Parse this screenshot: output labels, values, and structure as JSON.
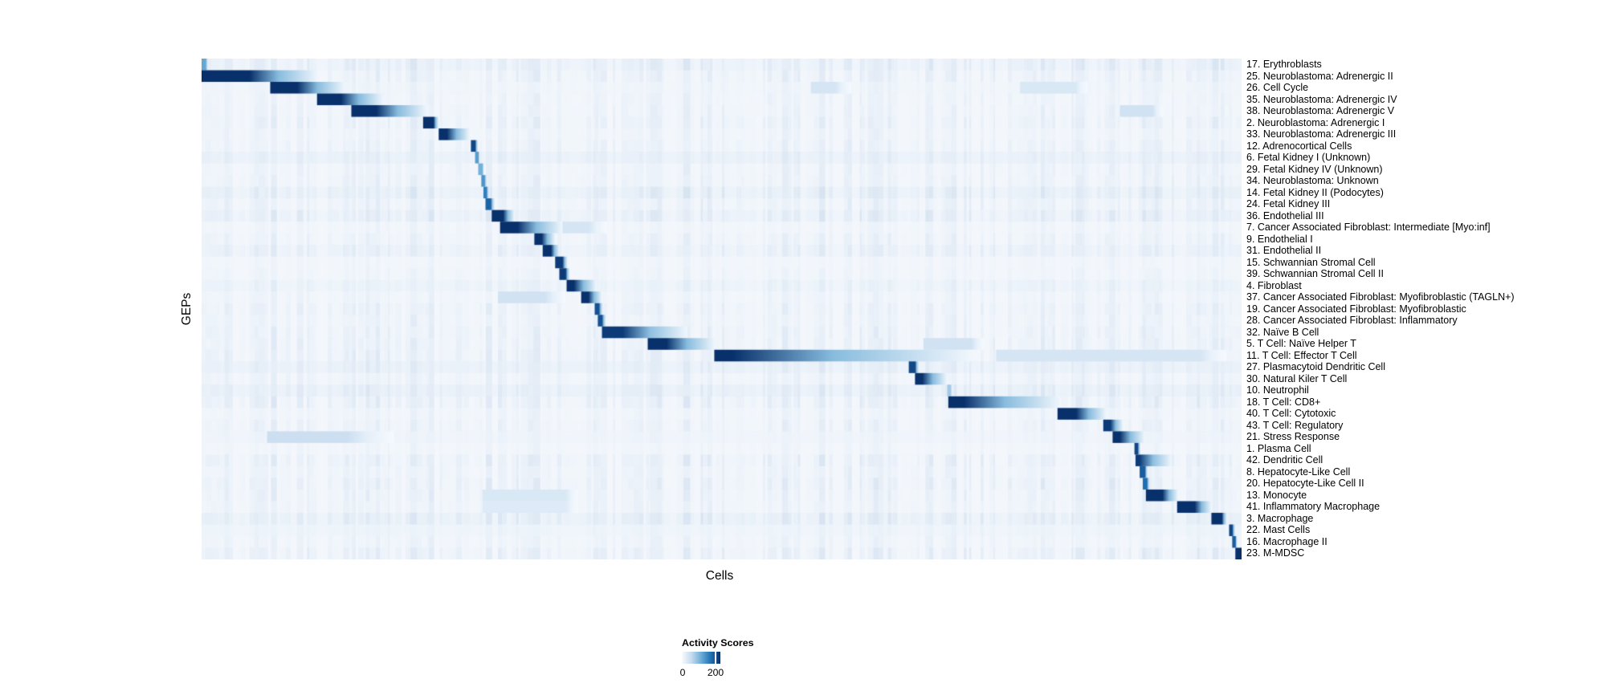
{
  "figure": {
    "xlabel": "Cells",
    "ylabel": "GEPs"
  },
  "legend": {
    "title": "Activity Scores",
    "tick_labels": [
      "0",
      "200"
    ],
    "min": 0,
    "max": 230,
    "tick_value": 200
  },
  "colors": {
    "colormap": "Blues",
    "cmap_anchors": [
      "#f7fbff",
      "#c6dbef",
      "#6baed6",
      "#2171b5",
      "#08306b"
    ],
    "heatmap_background": "#f3f7fc",
    "noise_stripe": "#7da5d2",
    "text": "#000000",
    "page_background": "#ffffff"
  },
  "chart_data": {
    "type": "heatmap",
    "title": "",
    "xlabel": "Cells",
    "ylabel": "GEPs",
    "colorbar_title": "Activity Scores",
    "colorbar_ticks": [
      0,
      200
    ],
    "value_range": [
      0,
      230
    ],
    "n_rows": 43,
    "note_segments": "segments: s=start, e=end of peak block, f=fade end (fractions 0-1 along Cells axis), p=peak activity score",
    "rows": [
      {
        "label": "17. Erythroblasts",
        "segments": [
          {
            "s": 0.0,
            "e": 0.004,
            "f": 0.007,
            "p": 120
          }
        ]
      },
      {
        "label": "25. Neuroblastoma: Adrenergic II",
        "segments": [
          {
            "s": 0.0,
            "e": 0.046,
            "f": 0.112,
            "p": 230
          }
        ]
      },
      {
        "label": "26. Cell Cycle",
        "segments": [
          {
            "s": 0.066,
            "e": 0.092,
            "f": 0.138,
            "p": 230
          },
          {
            "s": 0.586,
            "e": 0.609,
            "f": 0.625,
            "p": 40
          },
          {
            "s": 0.787,
            "e": 0.84,
            "f": 0.852,
            "p": 35
          }
        ]
      },
      {
        "label": "35. Neuroblastoma: Adrenergic IV",
        "segments": [
          {
            "s": 0.111,
            "e": 0.134,
            "f": 0.175,
            "p": 230
          }
        ]
      },
      {
        "label": "38. Neuroblastoma: Adrenergic V",
        "segments": [
          {
            "s": 0.144,
            "e": 0.168,
            "f": 0.217,
            "p": 230
          },
          {
            "s": 0.883,
            "e": 0.914,
            "f": 0.924,
            "p": 45
          }
        ]
      },
      {
        "label": "2. Neuroblastoma: Adrenergic I",
        "segments": [
          {
            "s": 0.213,
            "e": 0.223,
            "f": 0.228,
            "p": 230
          }
        ]
      },
      {
        "label": "33. Neuroblastoma: Adrenergic III",
        "segments": [
          {
            "s": 0.228,
            "e": 0.236,
            "f": 0.258,
            "p": 230
          }
        ]
      },
      {
        "label": "12. Adrenocortical Cells",
        "segments": [
          {
            "s": 0.259,
            "e": 0.263,
            "f": 0.266,
            "p": 210
          }
        ]
      },
      {
        "label": "6. Fetal Kidney I (Unknown)",
        "segments": [
          {
            "s": 0.263,
            "e": 0.266,
            "f": 0.268,
            "p": 130
          }
        ]
      },
      {
        "label": "29. Fetal Kidney IV (Unknown)",
        "segments": [
          {
            "s": 0.266,
            "e": 0.27,
            "f": 0.272,
            "p": 110
          }
        ]
      },
      {
        "label": "34. Neuroblastoma: Unknown",
        "segments": [
          {
            "s": 0.269,
            "e": 0.272,
            "f": 0.275,
            "p": 140
          }
        ]
      },
      {
        "label": "14. Fetal Kidney II (Podocytes)",
        "segments": [
          {
            "s": 0.271,
            "e": 0.274,
            "f": 0.277,
            "p": 160
          }
        ]
      },
      {
        "label": "24. Fetal Kidney III",
        "segments": [
          {
            "s": 0.273,
            "e": 0.278,
            "f": 0.282,
            "p": 185
          }
        ]
      },
      {
        "label": "36. Endothelial III",
        "segments": [
          {
            "s": 0.279,
            "e": 0.29,
            "f": 0.301,
            "p": 230
          }
        ]
      },
      {
        "label": "7. Cancer Associated Fibroblast: Intermediate [Myo:inf]",
        "segments": [
          {
            "s": 0.287,
            "e": 0.304,
            "f": 0.347,
            "p": 230
          },
          {
            "s": 0.347,
            "e": 0.372,
            "f": 0.39,
            "p": 40
          }
        ]
      },
      {
        "label": "9. Endothelial I",
        "segments": [
          {
            "s": 0.32,
            "e": 0.327,
            "f": 0.34,
            "p": 230
          }
        ]
      },
      {
        "label": "31. Endothelial II",
        "segments": [
          {
            "s": 0.328,
            "e": 0.336,
            "f": 0.344,
            "p": 230
          }
        ]
      },
      {
        "label": "15. Schwannian Stromal Cell",
        "segments": [
          {
            "s": 0.34,
            "e": 0.347,
            "f": 0.352,
            "p": 220
          }
        ]
      },
      {
        "label": "39. Schwannian Stromal Cell II",
        "segments": [
          {
            "s": 0.344,
            "e": 0.35,
            "f": 0.354,
            "p": 220
          }
        ]
      },
      {
        "label": "4. Fibroblast",
        "segments": [
          {
            "s": 0.351,
            "e": 0.358,
            "f": 0.38,
            "p": 230
          }
        ]
      },
      {
        "label": "37. Cancer Associated Fibroblast: Myofibroblastic (TAGLN+)",
        "segments": [
          {
            "s": 0.365,
            "e": 0.372,
            "f": 0.385,
            "p": 230
          },
          {
            "s": 0.285,
            "e": 0.33,
            "f": 0.35,
            "p": 45
          }
        ]
      },
      {
        "label": "19. Cancer Associated Fibroblast: Myofibroblastic",
        "segments": [
          {
            "s": 0.378,
            "e": 0.382,
            "f": 0.386,
            "p": 200
          }
        ]
      },
      {
        "label": "28. Cancer Associated Fibroblast: Inflammatory",
        "segments": [
          {
            "s": 0.381,
            "e": 0.385,
            "f": 0.389,
            "p": 200
          }
        ]
      },
      {
        "label": "32. Naïve B Cell",
        "segments": [
          {
            "s": 0.385,
            "e": 0.405,
            "f": 0.467,
            "p": 220
          }
        ]
      },
      {
        "label": "5. T Cell: Naïve Helper T",
        "segments": [
          {
            "s": 0.429,
            "e": 0.447,
            "f": 0.494,
            "p": 230
          },
          {
            "s": 0.694,
            "e": 0.74,
            "f": 0.752,
            "p": 45
          }
        ]
      },
      {
        "label": "11. T Cell: Effector T Cell",
        "segments": [
          {
            "s": 0.493,
            "e": 0.51,
            "f": 0.741,
            "p": 230
          },
          {
            "s": 0.764,
            "e": 0.96,
            "f": 0.985,
            "p": 40
          }
        ]
      },
      {
        "label": "27. Plasmacytoid Dendritic Cell",
        "segments": [
          {
            "s": 0.68,
            "e": 0.686,
            "f": 0.69,
            "p": 210
          }
        ]
      },
      {
        "label": "30. Natural Kiler T Cell",
        "segments": [
          {
            "s": 0.686,
            "e": 0.693,
            "f": 0.717,
            "p": 230
          }
        ]
      },
      {
        "label": "10. Neutrophil",
        "segments": [
          {
            "s": 0.717,
            "e": 0.72,
            "f": 0.723,
            "p": 80
          }
        ]
      },
      {
        "label": "18. T Cell: CD8+",
        "segments": [
          {
            "s": 0.718,
            "e": 0.733,
            "f": 0.826,
            "p": 230
          }
        ]
      },
      {
        "label": "40. T Cell: Cytotoxic",
        "segments": [
          {
            "s": 0.823,
            "e": 0.841,
            "f": 0.87,
            "p": 230
          }
        ]
      },
      {
        "label": "43. T Cell: Regulatory",
        "segments": [
          {
            "s": 0.867,
            "e": 0.874,
            "f": 0.886,
            "p": 220
          }
        ]
      },
      {
        "label": "21. Stress Response",
        "segments": [
          {
            "s": 0.876,
            "e": 0.883,
            "f": 0.907,
            "p": 230
          },
          {
            "s": 0.063,
            "e": 0.14,
            "f": 0.185,
            "p": 50
          }
        ]
      },
      {
        "label": "1. Plasma Cell",
        "segments": [
          {
            "s": 0.897,
            "e": 0.9,
            "f": 0.903,
            "p": 210
          }
        ]
      },
      {
        "label": "42. Dendritic Cell",
        "segments": [
          {
            "s": 0.898,
            "e": 0.902,
            "f": 0.933,
            "p": 220
          }
        ]
      },
      {
        "label": "8. Hepatocyte-Like Cell",
        "segments": [
          {
            "s": 0.902,
            "e": 0.907,
            "f": 0.91,
            "p": 190
          }
        ]
      },
      {
        "label": "20. Hepatocyte-Like Cell II",
        "segments": [
          {
            "s": 0.905,
            "e": 0.909,
            "f": 0.912,
            "p": 175
          }
        ]
      },
      {
        "label": "13. Monocyte",
        "segments": [
          {
            "s": 0.908,
            "e": 0.924,
            "f": 0.939,
            "p": 230
          },
          {
            "s": 0.27,
            "e": 0.35,
            "f": 0.362,
            "p": 35
          }
        ]
      },
      {
        "label": "41. Inflammatory Macrophage",
        "segments": [
          {
            "s": 0.938,
            "e": 0.955,
            "f": 0.971,
            "p": 230
          },
          {
            "s": 0.27,
            "e": 0.35,
            "f": 0.362,
            "p": 30
          }
        ]
      },
      {
        "label": "3. Macrophage",
        "segments": [
          {
            "s": 0.971,
            "e": 0.981,
            "f": 0.986,
            "p": 230
          }
        ]
      },
      {
        "label": "22. Mast Cells",
        "segments": [
          {
            "s": 0.988,
            "e": 0.991,
            "f": 0.994,
            "p": 210
          }
        ]
      },
      {
        "label": "16. Macrophage II",
        "segments": [
          {
            "s": 0.991,
            "e": 0.994,
            "f": 0.996,
            "p": 190
          }
        ]
      },
      {
        "label": "23. M-MDSC",
        "segments": [
          {
            "s": 0.994,
            "e": 1.0,
            "f": 1.0,
            "p": 230
          }
        ]
      }
    ]
  }
}
